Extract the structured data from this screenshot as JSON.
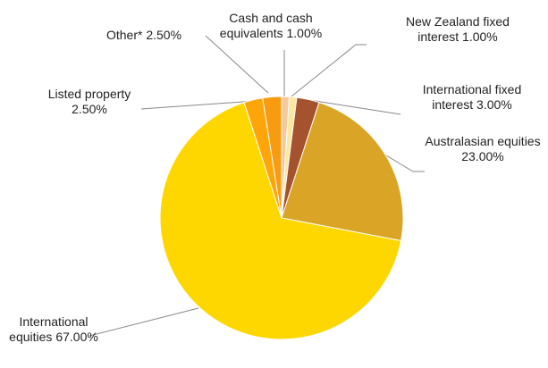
{
  "chart_data": {
    "type": "pie",
    "categories": [
      "Cash and cash equivalents",
      "New Zealand fixed interest",
      "International fixed interest",
      "Australasian equities",
      "International equities",
      "Listed property",
      "Other*"
    ],
    "values": [
      1,
      1,
      3,
      23,
      67,
      2.5,
      2.5
    ],
    "value_labels": [
      "1.00%",
      "1.00%",
      "3.00%",
      "23.00%",
      "67.00%",
      "2.50%",
      "2.50%"
    ],
    "colors": [
      "#f6c99b",
      "#fbe7a1",
      "#a5532e",
      "#daa526",
      "#ffd700",
      "#ffa50a",
      "#f79b10"
    ]
  }
}
